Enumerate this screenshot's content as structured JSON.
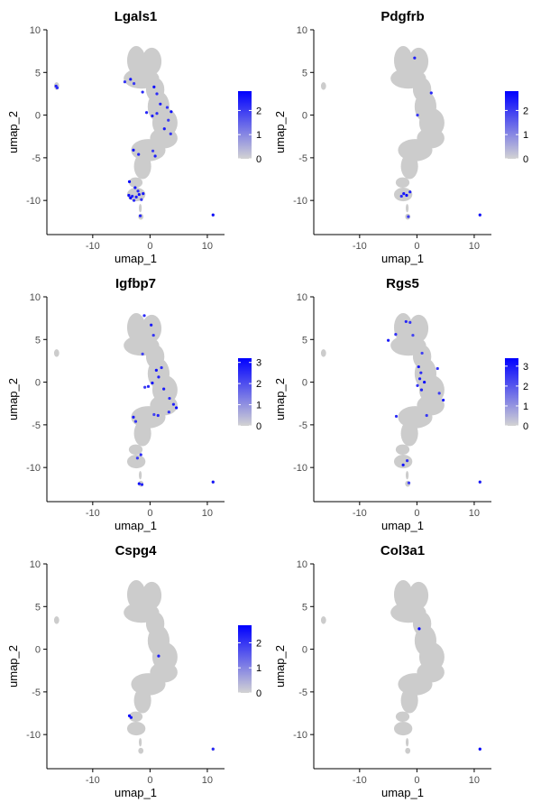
{
  "chart_data": [
    {
      "type": "scatter",
      "title": "Lgals1",
      "xlabel": "umap_1",
      "ylabel": "umap_2",
      "xlim": [
        -18,
        13
      ],
      "ylim": [
        -14,
        10
      ],
      "x_ticks": [
        -10,
        0,
        10
      ],
      "y_ticks": [
        10,
        5,
        0,
        -5,
        -10
      ],
      "legend": {
        "position": "right",
        "min": 0,
        "max": 2.8,
        "ticks": [
          0,
          1,
          2
        ]
      },
      "points": [
        {
          "x": -16.4,
          "y": 3.4,
          "v": 2.4
        },
        {
          "x": -16.2,
          "y": 3.2,
          "v": 2.2
        },
        {
          "x": -4.4,
          "y": 3.9,
          "v": 2.1
        },
        {
          "x": -3.4,
          "y": 4.2,
          "v": 2.5
        },
        {
          "x": -2.8,
          "y": 3.7,
          "v": 2.0
        },
        {
          "x": -1.3,
          "y": 2.7,
          "v": 2.3
        },
        {
          "x": 0.7,
          "y": 3.3,
          "v": 2.6
        },
        {
          "x": 1.2,
          "y": 2.5,
          "v": 2.2
        },
        {
          "x": 1.8,
          "y": 1.3,
          "v": 2.4
        },
        {
          "x": 3.0,
          "y": 0.9,
          "v": 2.1
        },
        {
          "x": 3.7,
          "y": 0.4,
          "v": 2.7
        },
        {
          "x": 3.2,
          "y": -0.6,
          "v": 2.0
        },
        {
          "x": 0.4,
          "y": -0.1,
          "v": 2.4
        },
        {
          "x": 1.2,
          "y": 0.2,
          "v": 2.2
        },
        {
          "x": -0.6,
          "y": 0.3,
          "v": 2.3
        },
        {
          "x": 2.5,
          "y": -1.6,
          "v": 2.5
        },
        {
          "x": 3.6,
          "y": -2.2,
          "v": 2.1
        },
        {
          "x": -2.9,
          "y": -4.1,
          "v": 2.6
        },
        {
          "x": -2.0,
          "y": -4.6,
          "v": 2.3
        },
        {
          "x": 0.5,
          "y": -4.2,
          "v": 2.0
        },
        {
          "x": 0.9,
          "y": -4.8,
          "v": 2.4
        },
        {
          "x": -3.6,
          "y": -7.8,
          "v": 2.7
        },
        {
          "x": -2.6,
          "y": -8.5,
          "v": 2.5
        },
        {
          "x": -2.1,
          "y": -8.9,
          "v": 2.2
        },
        {
          "x": -1.9,
          "y": -9.3,
          "v": 2.6
        },
        {
          "x": -3.1,
          "y": -9.5,
          "v": 2.3
        },
        {
          "x": -3.4,
          "y": -9.7,
          "v": 2.8
        },
        {
          "x": -2.4,
          "y": -9.6,
          "v": 2.4
        },
        {
          "x": -1.5,
          "y": -9.9,
          "v": 2.1
        },
        {
          "x": -1.2,
          "y": -9.2,
          "v": 2.5
        },
        {
          "x": -2.8,
          "y": -10.0,
          "v": 2.2
        },
        {
          "x": -3.7,
          "y": -9.4,
          "v": 2.6
        },
        {
          "x": -1.7,
          "y": -11.8,
          "v": 2.3
        },
        {
          "x": 11.0,
          "y": -11.7,
          "v": 2.6
        }
      ]
    },
    {
      "type": "scatter",
      "title": "Pdgfrb",
      "xlabel": "umap_1",
      "ylabel": "umap_2",
      "xlim": [
        -18,
        13
      ],
      "ylim": [
        -14,
        10
      ],
      "x_ticks": [
        -10,
        0,
        10
      ],
      "y_ticks": [
        10,
        5,
        0,
        -5,
        -10
      ],
      "legend": {
        "position": "right",
        "min": 0,
        "max": 2.8,
        "ticks": [
          0,
          1,
          2
        ]
      },
      "points": [
        {
          "x": -0.4,
          "y": 6.7,
          "v": 2.4
        },
        {
          "x": 2.5,
          "y": 2.6,
          "v": 2.3
        },
        {
          "x": 0.1,
          "y": 0.0,
          "v": 2.1
        },
        {
          "x": -2.3,
          "y": -9.2,
          "v": 2.5
        },
        {
          "x": -1.8,
          "y": -9.4,
          "v": 2.7
        },
        {
          "x": -1.2,
          "y": -9.0,
          "v": 2.3
        },
        {
          "x": -2.7,
          "y": -9.5,
          "v": 2.2
        },
        {
          "x": -1.5,
          "y": -11.9,
          "v": 2.0
        },
        {
          "x": 11.0,
          "y": -11.7,
          "v": 2.6
        }
      ]
    },
    {
      "type": "scatter",
      "title": "Igfbp7",
      "xlabel": "umap_1",
      "ylabel": "umap_2",
      "xlim": [
        -18,
        13
      ],
      "ylim": [
        -14,
        10
      ],
      "x_ticks": [
        -10,
        0,
        10
      ],
      "y_ticks": [
        10,
        5,
        0,
        -5,
        -10
      ],
      "legend": {
        "position": "right",
        "min": 0,
        "max": 3.2,
        "ticks": [
          0,
          1,
          2,
          3
        ]
      },
      "points": [
        {
          "x": -1.0,
          "y": 7.8,
          "v": 2.6
        },
        {
          "x": 0.2,
          "y": 6.7,
          "v": 2.8
        },
        {
          "x": 0.6,
          "y": 5.5,
          "v": 2.4
        },
        {
          "x": -1.3,
          "y": 3.3,
          "v": 2.2
        },
        {
          "x": 1.1,
          "y": 1.4,
          "v": 2.9
        },
        {
          "x": 2.0,
          "y": 1.7,
          "v": 2.5
        },
        {
          "x": 1.5,
          "y": 0.6,
          "v": 2.7
        },
        {
          "x": 0.4,
          "y": -0.1,
          "v": 3.0
        },
        {
          "x": -0.3,
          "y": -0.5,
          "v": 2.6
        },
        {
          "x": -0.9,
          "y": -0.6,
          "v": 2.3
        },
        {
          "x": 2.4,
          "y": -0.8,
          "v": 2.8
        },
        {
          "x": 3.4,
          "y": -1.9,
          "v": 2.5
        },
        {
          "x": 4.1,
          "y": -2.6,
          "v": 2.7
        },
        {
          "x": 4.6,
          "y": -3.0,
          "v": 3.1
        },
        {
          "x": 3.3,
          "y": -3.5,
          "v": 2.4
        },
        {
          "x": 1.4,
          "y": -3.9,
          "v": 2.6
        },
        {
          "x": 0.7,
          "y": -3.8,
          "v": 2.2
        },
        {
          "x": -2.9,
          "y": -4.1,
          "v": 2.8
        },
        {
          "x": -2.5,
          "y": -4.6,
          "v": 2.4
        },
        {
          "x": -1.6,
          "y": -8.5,
          "v": 2.6
        },
        {
          "x": -2.2,
          "y": -8.9,
          "v": 2.3
        },
        {
          "x": -1.9,
          "y": -11.9,
          "v": 3.0
        },
        {
          "x": -1.4,
          "y": -12.0,
          "v": 2.7
        },
        {
          "x": 11.0,
          "y": -11.7,
          "v": 2.9
        }
      ]
    },
    {
      "type": "scatter",
      "title": "Rgs5",
      "xlabel": "umap_1",
      "ylabel": "umap_2",
      "xlim": [
        -18,
        13
      ],
      "ylim": [
        -14,
        10
      ],
      "x_ticks": [
        -10,
        0,
        10
      ],
      "y_ticks": [
        10,
        5,
        0,
        -5,
        -10
      ],
      "legend": {
        "position": "right",
        "min": 0,
        "max": 3.4,
        "ticks": [
          0,
          1,
          2,
          3
        ]
      },
      "points": [
        {
          "x": -1.9,
          "y": 7.1,
          "v": 2.8
        },
        {
          "x": -1.2,
          "y": 7.0,
          "v": 2.5
        },
        {
          "x": -0.7,
          "y": 5.5,
          "v": 2.3
        },
        {
          "x": -5.0,
          "y": 4.9,
          "v": 2.9
        },
        {
          "x": -3.7,
          "y": 5.6,
          "v": 2.6
        },
        {
          "x": 0.9,
          "y": 3.4,
          "v": 2.4
        },
        {
          "x": 0.3,
          "y": 1.8,
          "v": 3.0
        },
        {
          "x": 0.7,
          "y": 1.1,
          "v": 2.7
        },
        {
          "x": 3.6,
          "y": 1.6,
          "v": 2.5
        },
        {
          "x": 0.5,
          "y": 0.4,
          "v": 2.9
        },
        {
          "x": 1.3,
          "y": 0.0,
          "v": 3.2
        },
        {
          "x": 0.1,
          "y": -0.4,
          "v": 2.6
        },
        {
          "x": 0.8,
          "y": -0.9,
          "v": 2.8
        },
        {
          "x": 3.9,
          "y": -1.3,
          "v": 2.4
        },
        {
          "x": 4.6,
          "y": -2.1,
          "v": 3.0
        },
        {
          "x": 1.7,
          "y": -3.9,
          "v": 2.5
        },
        {
          "x": -3.6,
          "y": -4.0,
          "v": 2.7
        },
        {
          "x": -2.4,
          "y": -9.7,
          "v": 3.1
        },
        {
          "x": -1.7,
          "y": -9.2,
          "v": 2.6
        },
        {
          "x": -1.4,
          "y": -11.8,
          "v": 2.4
        },
        {
          "x": 11.0,
          "y": -11.7,
          "v": 3.0
        }
      ]
    },
    {
      "type": "scatter",
      "title": "Cspg4",
      "xlabel": "umap_1",
      "ylabel": "umap_2",
      "xlim": [
        -18,
        13
      ],
      "ylim": [
        -14,
        10
      ],
      "x_ticks": [
        -10,
        0,
        10
      ],
      "y_ticks": [
        10,
        5,
        0,
        -5,
        -10
      ],
      "legend": {
        "position": "right",
        "min": 0,
        "max": 2.7,
        "ticks": [
          0,
          1,
          2
        ]
      },
      "points": [
        {
          "x": 1.5,
          "y": -0.8,
          "v": 2.3
        },
        {
          "x": -3.6,
          "y": -7.8,
          "v": 2.6
        },
        {
          "x": -3.3,
          "y": -8.0,
          "v": 2.4
        },
        {
          "x": 11.0,
          "y": -11.7,
          "v": 2.2
        }
      ]
    },
    {
      "type": "scatter",
      "title": "Col3a1",
      "xlabel": "umap_1",
      "ylabel": "umap_2",
      "xlim": [
        -18,
        13
      ],
      "ylim": [
        -14,
        10
      ],
      "x_ticks": [
        -10,
        0,
        10
      ],
      "y_ticks": [
        10,
        5,
        0,
        -5,
        -10
      ],
      "points": [
        {
          "x": 0.4,
          "y": 2.4,
          "v": 1.0
        },
        {
          "x": 11.0,
          "y": -11.7,
          "v": 1.0
        }
      ]
    }
  ],
  "colors": {
    "background_cells": "#cccccc",
    "low": "#d3d3d3",
    "high": "#0000ff",
    "axis": "#000000",
    "text": "#000000",
    "tick_text": "#4d4d4d"
  }
}
